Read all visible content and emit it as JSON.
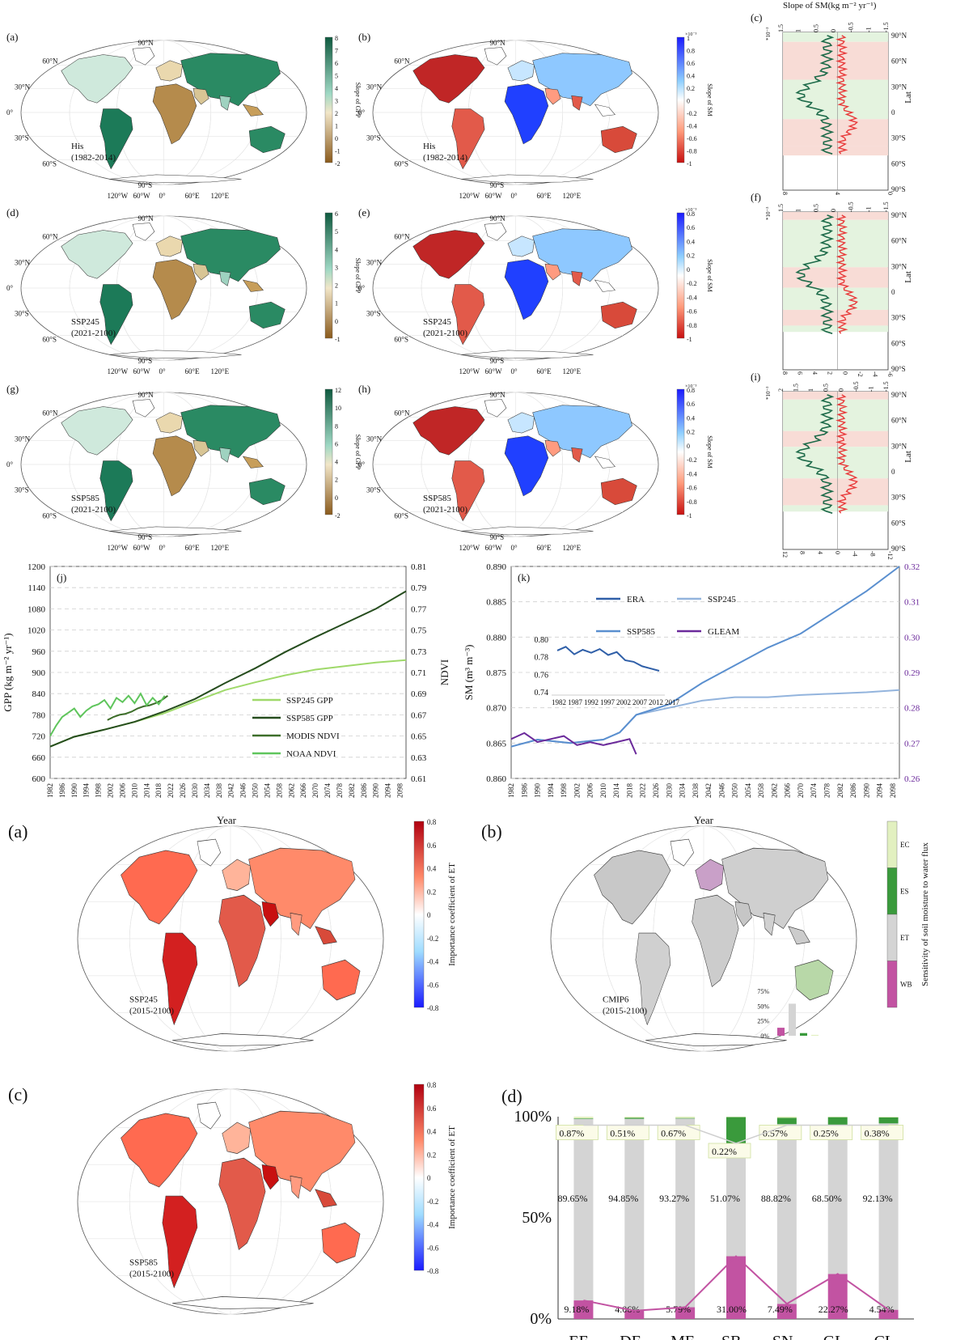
{
  "colors": {
    "gpp_pos": "#1f7a5a",
    "gpp_neg": "#a8742a",
    "sm_pos": "#2a2aff",
    "sm_neg": "#d32020",
    "land": "#d9d9d9",
    "green_band": "#e4f3df",
    "red_band": "#f8dcd6",
    "ssp245": "#9fd96a",
    "ssp585": "#264d1e",
    "modis": "#3d6e2a",
    "noaa": "#5fc55c",
    "era": "#2f5fa8",
    "ssp245_sm": "#93b4dd",
    "ssp585_sm": "#5a8fcf",
    "gleam": "#6b2a9b",
    "pink": "#c253a2",
    "grey": "#d4d4d4",
    "green": "#3a9a3c",
    "paleGreen": "#e2f0c0"
  },
  "maps_top": [
    {
      "panel": "(a)",
      "kind": "gpp",
      "label": "His",
      "period": "(1982-2014)",
      "cbar": {
        "title": "Slope of GPP",
        "ticks": [
          "8",
          "7",
          "6",
          "5",
          "4",
          "3",
          "2",
          "1",
          "0",
          "-1",
          "-2"
        ],
        "exp": ""
      }
    },
    {
      "panel": "(b)",
      "kind": "sm",
      "label": "His",
      "period": "(1982-2014)",
      "cbar": {
        "title": "Slope of SM",
        "ticks": [
          "1",
          "0.8",
          "0.6",
          "0.4",
          "0.2",
          "0",
          "-0.2",
          "-0.4",
          "-0.6",
          "-0.8",
          "-1"
        ],
        "exp": "×10⁻³"
      }
    },
    {
      "panel": "(d)",
      "kind": "gpp",
      "label": "SSP245",
      "period": "(2021-2100)",
      "cbar": {
        "title": "Slope of GPP",
        "ticks": [
          "6",
          "5",
          "4",
          "3",
          "2",
          "1",
          "0",
          "-1"
        ],
        "exp": ""
      }
    },
    {
      "panel": "(e)",
      "kind": "sm",
      "label": "SSP245",
      "period": "(2021-2100)",
      "cbar": {
        "title": "Slope of SM",
        "ticks": [
          "0.8",
          "0.6",
          "0.4",
          "0.2",
          "0",
          "-0.2",
          "-0.4",
          "-0.6",
          "-0.8",
          "-1"
        ],
        "exp": "×10⁻³"
      }
    },
    {
      "panel": "(g)",
      "kind": "gpp",
      "label": "SSP585",
      "period": "(2021-2100)",
      "cbar": {
        "title": "Slope of GPP",
        "ticks": [
          "12",
          "10",
          "8",
          "6",
          "4",
          "2",
          "0",
          "-2"
        ],
        "exp": ""
      }
    },
    {
      "panel": "(h)",
      "kind": "sm",
      "label": "SSP585",
      "period": "(2021-2100)",
      "cbar": {
        "title": "Slope of SM",
        "ticks": [
          "0.8",
          "0.6",
          "0.4",
          "0.2",
          "0",
          "-0.2",
          "-0.4",
          "-0.6",
          "-0.8",
          "-1"
        ],
        "exp": "×10⁻³"
      }
    }
  ],
  "map_axis": {
    "lat": [
      "90°N",
      "60°N",
      "30°N",
      "0°",
      "30°S",
      "60°S",
      "90°S"
    ],
    "lon": [
      "120°W",
      "60°W",
      "0°",
      "60°E",
      "120°E"
    ]
  },
  "profiles": [
    {
      "panel": "(c)",
      "top_title": "Slope of SM(kg m⁻² yr⁻¹)",
      "top_ticks": [
        "1.5",
        "1",
        "0.5",
        "0",
        "-0.5",
        "-1",
        "-1.5"
      ],
      "bottom_ticks": [
        "8",
        "4",
        "0"
      ],
      "exp": "*10⁻³",
      "bottom_title": ""
    },
    {
      "panel": "(f)",
      "top_title": "",
      "top_ticks": [
        "1.5",
        "1",
        "0.5",
        "0",
        "-0.5",
        "-1",
        "-1.5"
      ],
      "bottom_ticks": [
        "8",
        "6",
        "4",
        "2",
        "0",
        "-2",
        "-4",
        "-6"
      ],
      "exp": "*10⁻³",
      "bottom_title": ""
    },
    {
      "panel": "(i)",
      "top_title": "",
      "top_ticks": [
        "2",
        "1.5",
        "1",
        "0.5",
        "0",
        "-0.5",
        "-1",
        "-1.5"
      ],
      "bottom_ticks": [
        "12",
        "8",
        "4",
        "0",
        "-4",
        "-8",
        "-12"
      ],
      "exp": "*10⁻³",
      "bottom_title": "Slope of GPP(kg m⁻² s⁻¹yr⁻¹)"
    }
  ],
  "profile_lat": {
    "labels": [
      "90°N",
      "60°N",
      "30°N",
      "0",
      "30°S",
      "60°S",
      "90°S"
    ],
    "axis": "Lat"
  },
  "chart_data": [
    {
      "panel": "(j)",
      "type": "line",
      "xlabel": "Year",
      "ylabel": "GPP (kg m⁻² yr⁻¹)",
      "y2label": "NDVI",
      "ylim": [
        600,
        1200
      ],
      "y_ticks": [
        "1200",
        "1140",
        "1080",
        "1020",
        "960",
        "900",
        "840",
        "780",
        "720",
        "660",
        "600"
      ],
      "y2lim": [
        0.61,
        0.81
      ],
      "y2_ticks": [
        "0.81",
        "0.79",
        "0.77",
        "0.75",
        "0.73",
        "0.71",
        "0.69",
        "0.67",
        "0.65",
        "0.63",
        "0.61"
      ],
      "x_ticks": [
        "1982",
        "1986",
        "1990",
        "1994",
        "1998",
        "2002",
        "2006",
        "2010",
        "2014",
        "2018",
        "2022",
        "2026",
        "2030",
        "2034",
        "2038",
        "2042",
        "2046",
        "2050",
        "2054",
        "2058",
        "2062",
        "2066",
        "2070",
        "2074",
        "2078",
        "2082",
        "2086",
        "2090",
        "2094",
        "2098"
      ],
      "xlim": [
        1982,
        2100
      ],
      "series": [
        {
          "name": "SSP245 GPP",
          "axis": "left",
          "x": [
            1982,
            1990,
            2000,
            2010,
            2020,
            2030,
            2040,
            2050,
            2060,
            2070,
            2080,
            2090,
            2100
          ],
          "values": [
            690,
            718,
            738,
            760,
            785,
            818,
            850,
            872,
            892,
            908,
            918,
            928,
            935
          ]
        },
        {
          "name": "SSP585 GPP",
          "axis": "left",
          "x": [
            1982,
            1990,
            2000,
            2010,
            2020,
            2030,
            2040,
            2050,
            2060,
            2070,
            2080,
            2090,
            2100
          ],
          "values": [
            690,
            718,
            738,
            760,
            790,
            825,
            870,
            912,
            958,
            1000,
            1040,
            1080,
            1130
          ]
        },
        {
          "name": "MODIS NDVI",
          "axis": "right",
          "x": [
            2001,
            2003,
            2005,
            2007,
            2009,
            2011,
            2013,
            2015,
            2017,
            2019,
            2021
          ],
          "values": [
            0.665,
            0.668,
            0.67,
            0.671,
            0.673,
            0.676,
            0.678,
            0.679,
            0.681,
            0.684,
            0.688
          ]
        },
        {
          "name": "NOAA NDVI",
          "axis": "right",
          "x": [
            1982,
            1984,
            1986,
            1988,
            1990,
            1992,
            1994,
            1996,
            1998,
            2000,
            2002,
            2004,
            2006,
            2008,
            2010,
            2012,
            2014,
            2016,
            2018,
            2020
          ],
          "values": [
            0.65,
            0.66,
            0.668,
            0.672,
            0.676,
            0.668,
            0.674,
            0.678,
            0.68,
            0.684,
            0.676,
            0.686,
            0.682,
            0.688,
            0.681,
            0.69,
            0.679,
            0.686,
            0.68,
            0.688
          ]
        }
      ]
    },
    {
      "panel": "(k)",
      "type": "line",
      "xlabel": "Year",
      "ylabel": "SM (m³ m⁻³)",
      "ylim": [
        0.86,
        0.89
      ],
      "y_ticks": [
        "0.890",
        "0.885",
        "0.880",
        "0.875",
        "0.870",
        "0.865",
        "0.860"
      ],
      "y2lim": [
        0.25,
        0.32
      ],
      "y2_ticks": [
        "0.32",
        "0.31",
        "0.30",
        "0.29",
        "0.28",
        "0.27",
        "0.26"
      ],
      "x_ticks": [
        "1982",
        "1986",
        "1990",
        "1994",
        "1998",
        "2002",
        "2006",
        "2010",
        "2014",
        "2018",
        "2022",
        "2026",
        "2030",
        "2034",
        "2038",
        "2042",
        "2046",
        "2050",
        "2054",
        "2058",
        "2062",
        "2066",
        "2070",
        "2074",
        "2078",
        "2082",
        "2086",
        "2090",
        "2094",
        "2098"
      ],
      "xlim": [
        1982,
        2100
      ],
      "series": [
        {
          "name": "SSP245",
          "axis": "left",
          "x": [
            1982,
            1990,
            2000,
            2010,
            2015,
            2020,
            2030,
            2040,
            2050,
            2060,
            2070,
            2080,
            2090,
            2100
          ],
          "values": [
            0.8645,
            0.8655,
            0.865,
            0.8655,
            0.8665,
            0.869,
            0.87,
            0.871,
            0.8715,
            0.8715,
            0.8718,
            0.872,
            0.8722,
            0.8725
          ]
        },
        {
          "name": "SSP585",
          "axis": "left",
          "x": [
            1982,
            1990,
            2000,
            2010,
            2015,
            2020,
            2030,
            2040,
            2050,
            2060,
            2070,
            2080,
            2090,
            2100
          ],
          "values": [
            0.8645,
            0.8655,
            0.865,
            0.8655,
            0.8665,
            0.869,
            0.8705,
            0.8735,
            0.876,
            0.8785,
            0.8805,
            0.8835,
            0.8865,
            0.89
          ]
        },
        {
          "name": "GLEAM",
          "axis": "right",
          "x": [
            1982,
            1986,
            1990,
            1994,
            1998,
            2002,
            2006,
            2010,
            2014,
            2018,
            2020
          ],
          "values": [
            0.263,
            0.265,
            0.262,
            0.263,
            0.264,
            0.261,
            0.262,
            0.261,
            0.262,
            0.263,
            0.258
          ]
        }
      ],
      "inset": {
        "series_name": "ERA",
        "y_ticks": [
          "0.80",
          "0.78",
          "0.76",
          "0.74"
        ],
        "x_ticks": [
          "1982",
          "1987",
          "1992",
          "1997",
          "2002",
          "2007",
          "2012",
          "2017"
        ],
        "ylim": [
          0.74,
          0.81
        ],
        "xlim": [
          1980,
          2020
        ],
        "x": [
          1982,
          1985,
          1988,
          1991,
          1994,
          1997,
          2000,
          2003,
          2006,
          2009,
          2012,
          2015,
          2018
        ],
        "values": [
          0.795,
          0.8,
          0.79,
          0.796,
          0.792,
          0.797,
          0.789,
          0.793,
          0.782,
          0.78,
          0.774,
          0.771,
          0.768
        ]
      },
      "legend": [
        "ERA",
        "SSP245",
        "SSP585",
        "GLEAM"
      ]
    },
    {
      "panel": "(d)",
      "type": "bar",
      "categories": [
        "EF",
        "DF",
        "MF",
        "SB",
        "SN",
        "GL",
        "CL"
      ],
      "series": [
        {
          "name": "WB",
          "values": [
            9.18,
            4.06,
            5.79,
            31.0,
            7.49,
            22.27,
            4.54
          ]
        },
        {
          "name": "ET",
          "values": [
            89.65,
            94.85,
            93.27,
            51.07,
            88.82,
            68.5,
            92.13
          ]
        },
        {
          "name": "ES",
          "values": [
            0.3,
            0.58,
            0.27,
            17.71,
            3.12,
            8.98,
            2.95
          ]
        },
        {
          "name": "EC",
          "values": [
            0.87,
            0.51,
            0.67,
            0.22,
            0.57,
            0.25,
            0.38
          ]
        }
      ],
      "y_ticks": [
        "100%",
        "50%",
        "0%"
      ],
      "ylim": [
        0,
        100
      ]
    }
  ],
  "maps_bottom": [
    {
      "panel": "(a)",
      "label": "SSP245",
      "period": "(2015-2100)",
      "cbar_title": "Importance coefficient of ET",
      "ticks": [
        "0.8",
        "0.6",
        "0.4",
        "0.2",
        "0",
        "-0.2",
        "-0.4",
        "-0.6",
        "-0.8"
      ]
    },
    {
      "panel": "(b)",
      "label": "CMIP6",
      "period": "(2015-2100)",
      "cbar_title": "Sensitivity of soil moisture to water flux",
      "classes": [
        "EC",
        "ES",
        "ET",
        "WB"
      ],
      "inset_ticks": [
        "75%",
        "50%",
        "25%",
        "0%"
      ],
      "inset_values": [
        18,
        72,
        6,
        2
      ]
    },
    {
      "panel": "(c)",
      "label": "SSP585",
      "period": "(2015-2100)",
      "cbar_title": "Importance coefficient of ET",
      "ticks": [
        "0.8",
        "0.6",
        "0.4",
        "0.2",
        "0",
        "-0.2",
        "-0.4",
        "-0.6",
        "-0.8"
      ]
    }
  ],
  "labels": {
    "panel_d": "(d)",
    "panel_j": "(j)",
    "panel_k": "(k)"
  }
}
